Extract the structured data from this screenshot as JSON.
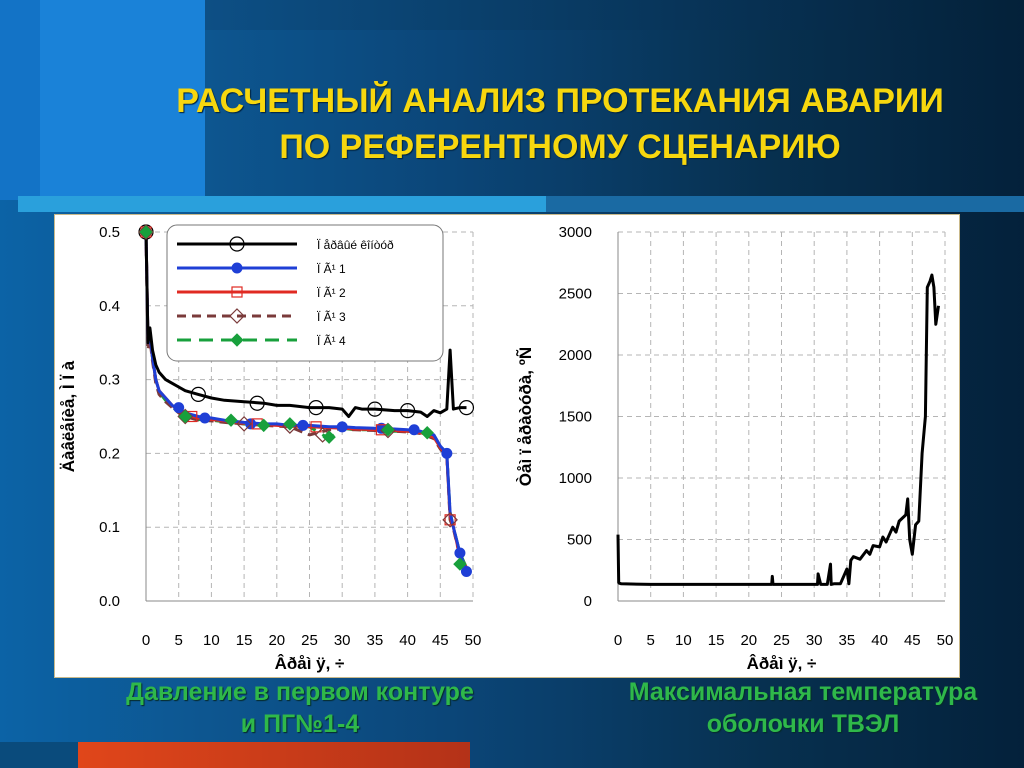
{
  "title": {
    "line1": "РАСЧЕТНЫЙ АНАЛИЗ ПРОТЕКАНИЯ АВАРИИ",
    "line2": "ПО РЕФЕРЕНТНОМУ СЦЕНАРИЮ"
  },
  "captions": {
    "left_line1": "Давление в первом контуре",
    "left_line2": "и ПГ№1-4",
    "right_line1": "Максимальная температура",
    "right_line2": "оболочки ТВЭЛ"
  },
  "colors": {
    "title": "#f7d70e",
    "caption": "#2fb84a",
    "pg1": "#1f3fd6",
    "pg2": "#e02a22",
    "pg3": "#7a3a3a",
    "pg4": "#18a03c"
  },
  "chart_data": [
    {
      "type": "line",
      "xlabel": "Âðåì ÿ, ÷",
      "ylabel": "Äàâëåíèå, Ì Ï à",
      "xlim": [
        0,
        50
      ],
      "ylim": [
        0,
        0.5
      ],
      "x_ticks": [
        "0",
        "5",
        "10",
        "15",
        "20",
        "25",
        "30",
        "35",
        "40",
        "45",
        "50"
      ],
      "y_ticks": [
        "0.0",
        "0.1",
        "0.2",
        "0.3",
        "0.4",
        "0.5"
      ],
      "grid": true,
      "legend_position": "top-right",
      "series": [
        {
          "name": "Ï åðâûé êîíòóð",
          "color": "#000000",
          "marker": "open-circle",
          "x": [
            0,
            0.3,
            0.6,
            1,
            1.5,
            2,
            3,
            4,
            5,
            6,
            8,
            10,
            12,
            15,
            18,
            20,
            22,
            25,
            28,
            30,
            31,
            32,
            33,
            35,
            38,
            40,
            42,
            43,
            44,
            45,
            46,
            46.5,
            47,
            48,
            49
          ],
          "y": [
            0.5,
            0.35,
            0.37,
            0.34,
            0.32,
            0.31,
            0.3,
            0.295,
            0.29,
            0.285,
            0.28,
            0.275,
            0.272,
            0.27,
            0.268,
            0.265,
            0.265,
            0.262,
            0.262,
            0.26,
            0.25,
            0.262,
            0.26,
            0.26,
            0.258,
            0.258,
            0.256,
            0.25,
            0.258,
            0.255,
            0.26,
            0.34,
            0.26,
            0.262,
            0.262
          ]
        },
        {
          "name": "Ï Ã¹ 1",
          "color": "#1f3fd6",
          "marker": "filled-circle",
          "x": [
            0,
            0.3,
            0.6,
            1,
            1.5,
            2,
            3,
            4,
            5,
            6,
            8,
            10,
            12,
            15,
            18,
            20,
            22,
            25,
            28,
            30,
            32,
            35,
            38,
            40,
            42,
            44,
            45,
            46,
            46.5,
            47,
            48,
            49
          ],
          "y": [
            0.5,
            0.35,
            0.36,
            0.33,
            0.3,
            0.285,
            0.275,
            0.265,
            0.26,
            0.255,
            0.25,
            0.248,
            0.245,
            0.242,
            0.24,
            0.24,
            0.238,
            0.238,
            0.236,
            0.236,
            0.235,
            0.234,
            0.233,
            0.232,
            0.23,
            0.225,
            0.21,
            0.2,
            0.12,
            0.1,
            0.065,
            0.04
          ]
        },
        {
          "name": "Ï Ã¹ 2",
          "color": "#e02a22",
          "marker": "open-square",
          "x": [
            0,
            0.3,
            0.6,
            1,
            1.5,
            2,
            3,
            4,
            5,
            6,
            8,
            10,
            12,
            15,
            18,
            20,
            22,
            25,
            28,
            30,
            32,
            35,
            38,
            40,
            42,
            44,
            45,
            46,
            46.5,
            47,
            48,
            49
          ],
          "y": [
            0.5,
            0.35,
            0.36,
            0.33,
            0.3,
            0.285,
            0.275,
            0.265,
            0.258,
            0.253,
            0.248,
            0.246,
            0.244,
            0.241,
            0.239,
            0.238,
            0.237,
            0.236,
            0.235,
            0.234,
            0.233,
            0.232,
            0.231,
            0.23,
            0.228,
            0.222,
            0.208,
            0.198,
            0.115,
            0.1,
            0.06,
            0.045
          ]
        },
        {
          "name": "Ï Ã¹ 3",
          "color": "#7a3a3a",
          "marker": "open-diamond",
          "x": [
            0,
            0.3,
            0.6,
            1,
            1.5,
            2,
            3,
            4,
            5,
            6,
            8,
            10,
            12,
            15,
            18,
            20,
            22,
            25,
            28,
            30,
            32,
            35,
            38,
            40,
            42,
            44,
            45,
            46,
            46.5,
            47,
            48,
            49
          ],
          "y": [
            0.5,
            0.34,
            0.355,
            0.325,
            0.295,
            0.28,
            0.27,
            0.262,
            0.255,
            0.25,
            0.245,
            0.244,
            0.242,
            0.24,
            0.238,
            0.237,
            0.236,
            0.225,
            0.232,
            0.233,
            0.232,
            0.231,
            0.23,
            0.229,
            0.227,
            0.22,
            0.206,
            0.196,
            0.11,
            0.098,
            0.06,
            0.045
          ]
        },
        {
          "name": "Ï Ã¹ 4",
          "color": "#18a03c",
          "marker": "filled-diamond",
          "x": [
            0,
            0.3,
            0.6,
            1,
            1.5,
            2,
            3,
            4,
            5,
            6,
            8,
            10,
            12,
            15,
            18,
            20,
            22,
            25,
            28,
            30,
            32,
            35,
            38,
            40,
            42,
            44,
            45,
            46,
            46.5,
            47,
            48,
            49
          ],
          "y": [
            0.5,
            0.35,
            0.36,
            0.33,
            0.3,
            0.283,
            0.272,
            0.263,
            0.256,
            0.251,
            0.246,
            0.245,
            0.243,
            0.24,
            0.238,
            0.24,
            0.237,
            0.236,
            0.22,
            0.234,
            0.232,
            0.232,
            0.23,
            0.23,
            0.228,
            0.225,
            0.21,
            0.2,
            0.12,
            0.1,
            0.065,
            0.045
          ]
        }
      ],
      "marker_x": [
        0,
        8,
        16,
        24,
        32,
        40,
        47
      ],
      "markers_pg": [
        {
          "series": 1,
          "points": [
            [
              0,
              0.5
            ],
            [
              5,
              0.262
            ],
            [
              9,
              0.248
            ],
            [
              16,
              0.24
            ],
            [
              24,
              0.238
            ],
            [
              30,
              0.236
            ],
            [
              36,
              0.234
            ],
            [
              41,
              0.232
            ],
            [
              46,
              0.2
            ],
            [
              48,
              0.065
            ],
            [
              49,
              0.04
            ]
          ]
        },
        {
          "series": 2,
          "points": [
            [
              0,
              0.5
            ],
            [
              7,
              0.25
            ],
            [
              17,
              0.24
            ],
            [
              26,
              0.236
            ],
            [
              36,
              0.232
            ],
            [
              46.5,
              0.11
            ]
          ]
        },
        {
          "series": 3,
          "points": [
            [
              0,
              0.5
            ],
            [
              6,
              0.25
            ],
            [
              15,
              0.24
            ],
            [
              22,
              0.237
            ],
            [
              27,
              0.225
            ],
            [
              37,
              0.231
            ],
            [
              46.5,
              0.11
            ]
          ]
        },
        {
          "series": 4,
          "points": [
            [
              0,
              0.5
            ],
            [
              6,
              0.25
            ],
            [
              13,
              0.245
            ],
            [
              18,
              0.238
            ],
            [
              22,
              0.24
            ],
            [
              28,
              0.222
            ],
            [
              37,
              0.232
            ],
            [
              43,
              0.228
            ],
            [
              48,
              0.05
            ]
          ]
        }
      ],
      "markers_first": [
        [
          0,
          0.5
        ],
        [
          8,
          0.28
        ],
        [
          17,
          0.268
        ],
        [
          26,
          0.262
        ],
        [
          35,
          0.26
        ],
        [
          40,
          0.258
        ],
        [
          49,
          0.262
        ]
      ]
    },
    {
      "type": "line",
      "xlabel": "Âðåì ÿ, ÷",
      "ylabel": "Òåì ï åðàòóðà, ºÑ",
      "xlim": [
        0,
        50
      ],
      "ylim": [
        0,
        3000
      ],
      "x_ticks": [
        "0",
        "5",
        "10",
        "15",
        "20",
        "25",
        "30",
        "35",
        "40",
        "45",
        "50"
      ],
      "y_ticks": [
        "0",
        "500",
        "1000",
        "1500",
        "2000",
        "2500",
        "3000"
      ],
      "grid": true,
      "series": [
        {
          "name": "",
          "color": "#000000",
          "x": [
            0,
            0.1,
            0.2,
            0.5,
            5,
            10,
            15,
            20,
            23.5,
            23.6,
            23.7,
            25,
            30,
            30.5,
            30.6,
            31,
            32,
            32.5,
            32.6,
            33,
            34,
            35,
            35.3,
            35.6,
            36,
            37,
            38,
            38.5,
            39,
            40,
            40.5,
            41,
            42,
            42.5,
            43,
            44,
            44.3,
            44.6,
            45,
            45.5,
            46,
            46.5,
            47,
            47.3,
            47.7,
            48,
            48.3,
            48.6,
            49
          ],
          "y": [
            540,
            150,
            145,
            140,
            135,
            135,
            135,
            135,
            135,
            200,
            135,
            135,
            135,
            135,
            220,
            135,
            135,
            300,
            135,
            140,
            140,
            260,
            140,
            330,
            360,
            340,
            410,
            380,
            450,
            440,
            520,
            480,
            600,
            560,
            650,
            700,
            830,
            500,
            380,
            620,
            650,
            1200,
            1500,
            2550,
            2600,
            2650,
            2550,
            2250,
            2400
          ]
        }
      ]
    }
  ]
}
